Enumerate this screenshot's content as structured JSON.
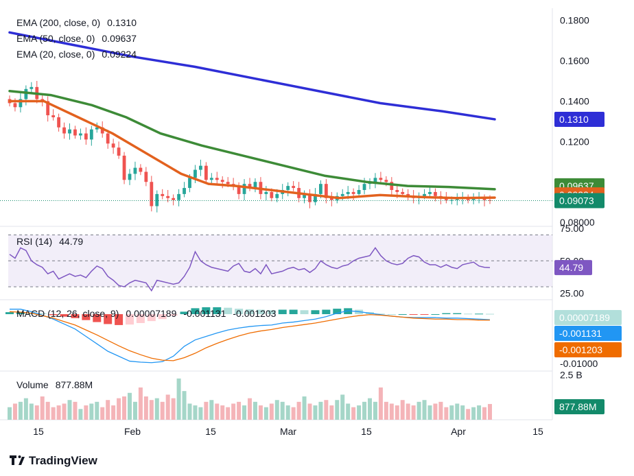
{
  "chart_data": [
    {
      "type": "candlestick",
      "title": "",
      "ylim": [
        0.078,
        0.186
      ],
      "y_ticks": [
        "0.1800",
        "0.1600",
        "0.1400",
        "0.1200",
        "0.08000"
      ],
      "x_ticks": [
        "15",
        "Feb",
        "15",
        "Mar",
        "15",
        "Apr",
        "15"
      ],
      "indicators": [
        {
          "label": "EMA (200, close, 0)",
          "value": "0.1310",
          "color": "#2e2ed6",
          "tag": "0.1310"
        },
        {
          "label": "EMA (50, close, 0)",
          "value": "0.09637",
          "color": "#3d8b37",
          "tag": "0.09637"
        },
        {
          "label": "EMA (20, close, 0)",
          "value": "0.09224",
          "color": "#e2611e",
          "tag": "0.09224"
        }
      ],
      "last_price": {
        "value": 0.09073,
        "tag": "0.09073",
        "color": "#138a6a"
      },
      "series": [
        {
          "name": "EMA (200, close, 0)",
          "values": [
            [
              0,
              0.174
            ],
            [
              90,
              0.168
            ],
            [
              180,
              0.162
            ],
            [
              270,
              0.157
            ],
            [
              360,
              0.151
            ],
            [
              450,
              0.145
            ],
            [
              540,
              0.139
            ],
            [
              630,
              0.135
            ],
            [
              707,
              0.131
            ]
          ]
        },
        {
          "name": "EMA (50, close, 0)",
          "values": [
            [
              0,
              0.145
            ],
            [
              60,
              0.143
            ],
            [
              120,
              0.138
            ],
            [
              170,
              0.132
            ],
            [
              220,
              0.124
            ],
            [
              280,
              0.118
            ],
            [
              340,
              0.113
            ],
            [
              400,
              0.108
            ],
            [
              460,
              0.103
            ],
            [
              520,
              0.1
            ],
            [
              580,
              0.098
            ],
            [
              640,
              0.0975
            ],
            [
              707,
              0.09637
            ]
          ]
        },
        {
          "name": "EMA (20, close, 0)",
          "values": [
            [
              0,
              0.14
            ],
            [
              50,
              0.14
            ],
            [
              100,
              0.132
            ],
            [
              150,
              0.124
            ],
            [
              200,
              0.114
            ],
            [
              250,
              0.104
            ],
            [
              290,
              0.099
            ],
            [
              330,
              0.098
            ],
            [
              380,
              0.096
            ],
            [
              430,
              0.094
            ],
            [
              480,
              0.092
            ],
            [
              540,
              0.0935
            ],
            [
              600,
              0.0925
            ],
            [
              650,
              0.092
            ],
            [
              707,
              0.09224
            ]
          ]
        }
      ],
      "close": [
        0.139,
        0.137,
        0.141,
        0.146,
        0.147,
        0.141,
        0.14,
        0.133,
        0.132,
        0.127,
        0.124,
        0.126,
        0.123,
        0.124,
        0.121,
        0.126,
        0.127,
        0.124,
        0.119,
        0.117,
        0.113,
        0.101,
        0.104,
        0.107,
        0.105,
        0.1,
        0.088,
        0.094,
        0.093,
        0.092,
        0.091,
        0.094,
        0.097,
        0.102,
        0.106,
        0.108,
        0.101,
        0.102,
        0.101,
        0.1,
        0.099,
        0.098,
        0.094,
        0.099,
        0.097,
        0.1,
        0.094,
        0.095,
        0.092,
        0.094,
        0.096,
        0.098,
        0.097,
        0.092,
        0.094,
        0.09,
        0.094,
        0.099,
        0.092,
        0.091,
        0.093,
        0.094,
        0.095,
        0.094,
        0.096,
        0.099,
        0.1,
        0.102,
        0.101,
        0.1,
        0.096,
        0.095,
        0.094,
        0.093,
        0.092,
        0.093,
        0.094,
        0.095,
        0.093,
        0.092,
        0.091,
        0.091,
        0.092,
        0.092,
        0.091,
        0.092,
        0.092,
        0.091,
        0.0907
      ]
    },
    {
      "type": "line",
      "title": "RSI (14)",
      "value": "44.79",
      "ylim": [
        20,
        75
      ],
      "y_ticks": [
        "75.00",
        "50.00",
        "25.00"
      ],
      "bands": [
        30,
        50,
        70
      ],
      "values": [
        55,
        52,
        60,
        58,
        50,
        47,
        45,
        40,
        42,
        36,
        38,
        40,
        38,
        39,
        37,
        42,
        46,
        44,
        38,
        35,
        31,
        30,
        33,
        35,
        34,
        33,
        27,
        35,
        34,
        33,
        32,
        33,
        38,
        45,
        57,
        50,
        47,
        45,
        44,
        43,
        42,
        46,
        48,
        42,
        41,
        44,
        40,
        47,
        40,
        41,
        42,
        44,
        45,
        43,
        44,
        41,
        44,
        50,
        47,
        45,
        44,
        46,
        47,
        50,
        52,
        53,
        54,
        60,
        54,
        50,
        48,
        47,
        48,
        52,
        54,
        53,
        49,
        47,
        47,
        45,
        47,
        45,
        44,
        47,
        48,
        49,
        46,
        45,
        44.79
      ],
      "color": "#7e57c2"
    },
    {
      "type": "bar",
      "title": "MACD (12, 26, close, 9)",
      "values_text": [
        "0.00007189",
        "-0.001131",
        "-0.001203"
      ],
      "ylim": [
        -0.0115,
        0.0025
      ],
      "y_ticks": [
        "-0.01000"
      ],
      "series": [
        {
          "name": "MACD",
          "color": "#2196f3",
          "values": [
            0.001,
            0.001,
            0.0005,
            -0.0002,
            -0.001,
            -0.002,
            -0.003,
            -0.0045,
            -0.006,
            -0.0075,
            -0.0085,
            -0.0095,
            -0.0097,
            -0.0098,
            -0.0096,
            -0.0085,
            -0.0065,
            -0.0052,
            -0.0045,
            -0.0038,
            -0.0032,
            -0.0028,
            -0.0025,
            -0.0023,
            -0.0022,
            -0.0018,
            -0.0016,
            -0.0013,
            -0.001,
            -0.0005,
            0.0002,
            0.0007,
            0.0005,
            0.0002,
            -0.0001,
            -0.0004,
            -0.0006,
            -0.0007,
            -0.0007,
            -0.0007,
            -0.0008,
            -0.0008,
            -0.0009,
            -0.001,
            -0.001131
          ]
        },
        {
          "name": "Signal",
          "color": "#ef6c00",
          "values": [
            0.0005,
            0.0004,
            0.0002,
            -0.0003,
            -0.0008,
            -0.0015,
            -0.0022,
            -0.0032,
            -0.0042,
            -0.0053,
            -0.0064,
            -0.0074,
            -0.0082,
            -0.0089,
            -0.0093,
            -0.0094,
            -0.0088,
            -0.0079,
            -0.0068,
            -0.0059,
            -0.0051,
            -0.0044,
            -0.0038,
            -0.0034,
            -0.0031,
            -0.0027,
            -0.0024,
            -0.0021,
            -0.0018,
            -0.0014,
            -0.001,
            -0.0006,
            -0.0003,
            -0.0001,
            -0.0002,
            -0.0004,
            -0.0006,
            -0.0008,
            -0.0009,
            -0.001,
            -0.001,
            -0.0011,
            -0.0011,
            -0.0012,
            -0.001203
          ]
        },
        {
          "name": "Histogram",
          "color": "#26a69a",
          "values": [
            0.0004,
            0.0004,
            0.0003,
            0.0002,
            -0.0002,
            -0.0005,
            -0.0008,
            -0.0012,
            -0.0016,
            -0.002,
            -0.0022,
            -0.0021,
            -0.0018,
            -0.0014,
            -0.001,
            -0.0003,
            0.0005,
            0.0012,
            0.0014,
            0.0014,
            0.0013,
            0.0011,
            0.001,
            0.0009,
            0.0008,
            0.0009,
            0.0009,
            0.0008,
            0.0008,
            0.0009,
            0.0011,
            0.0012,
            0.0009,
            0.0004,
            0.0001,
            0.0,
            0.0,
            -0.0001,
            -0.0001,
            0.0,
            0.0002,
            0.0002,
            0.0001,
            0.0001,
            7.189e-05
          ]
        }
      ]
    },
    {
      "type": "bar",
      "title": "Volume",
      "value": "877.88M",
      "y_ticks": [
        "2.5 B"
      ],
      "ylim": [
        0,
        2.6
      ],
      "values": [
        0.7,
        0.9,
        1.0,
        1.2,
        0.9,
        0.8,
        1.3,
        1.0,
        0.7,
        0.8,
        0.9,
        1.1,
        1.0,
        0.6,
        0.8,
        0.9,
        1.0,
        0.7,
        1.1,
        0.8,
        1.2,
        1.3,
        1.5,
        1.0,
        1.8,
        1.3,
        1.1,
        1.2,
        1.0,
        1.4,
        1.2,
        2.3,
        1.6,
        0.9,
        0.8,
        0.7,
        1.0,
        1.1,
        0.9,
        0.8,
        0.7,
        0.9,
        1.0,
        0.8,
        1.2,
        1.0,
        0.8,
        0.7,
        0.9,
        1.1,
        1.0,
        0.8,
        0.7,
        1.0,
        1.3,
        0.9,
        0.8,
        1.0,
        1.1,
        0.8,
        1.1,
        1.4,
        0.9,
        0.7,
        0.8,
        1.0,
        1.2,
        1.0,
        1.8,
        1.0,
        0.9,
        0.8,
        1.1,
        0.9,
        0.8,
        1.0,
        1.1,
        0.8,
        0.9,
        1.0,
        0.7,
        0.8,
        0.9,
        0.8,
        0.6,
        0.7,
        0.8,
        0.7,
        0.878
      ]
    }
  ],
  "branding": {
    "name": "TradingView"
  }
}
